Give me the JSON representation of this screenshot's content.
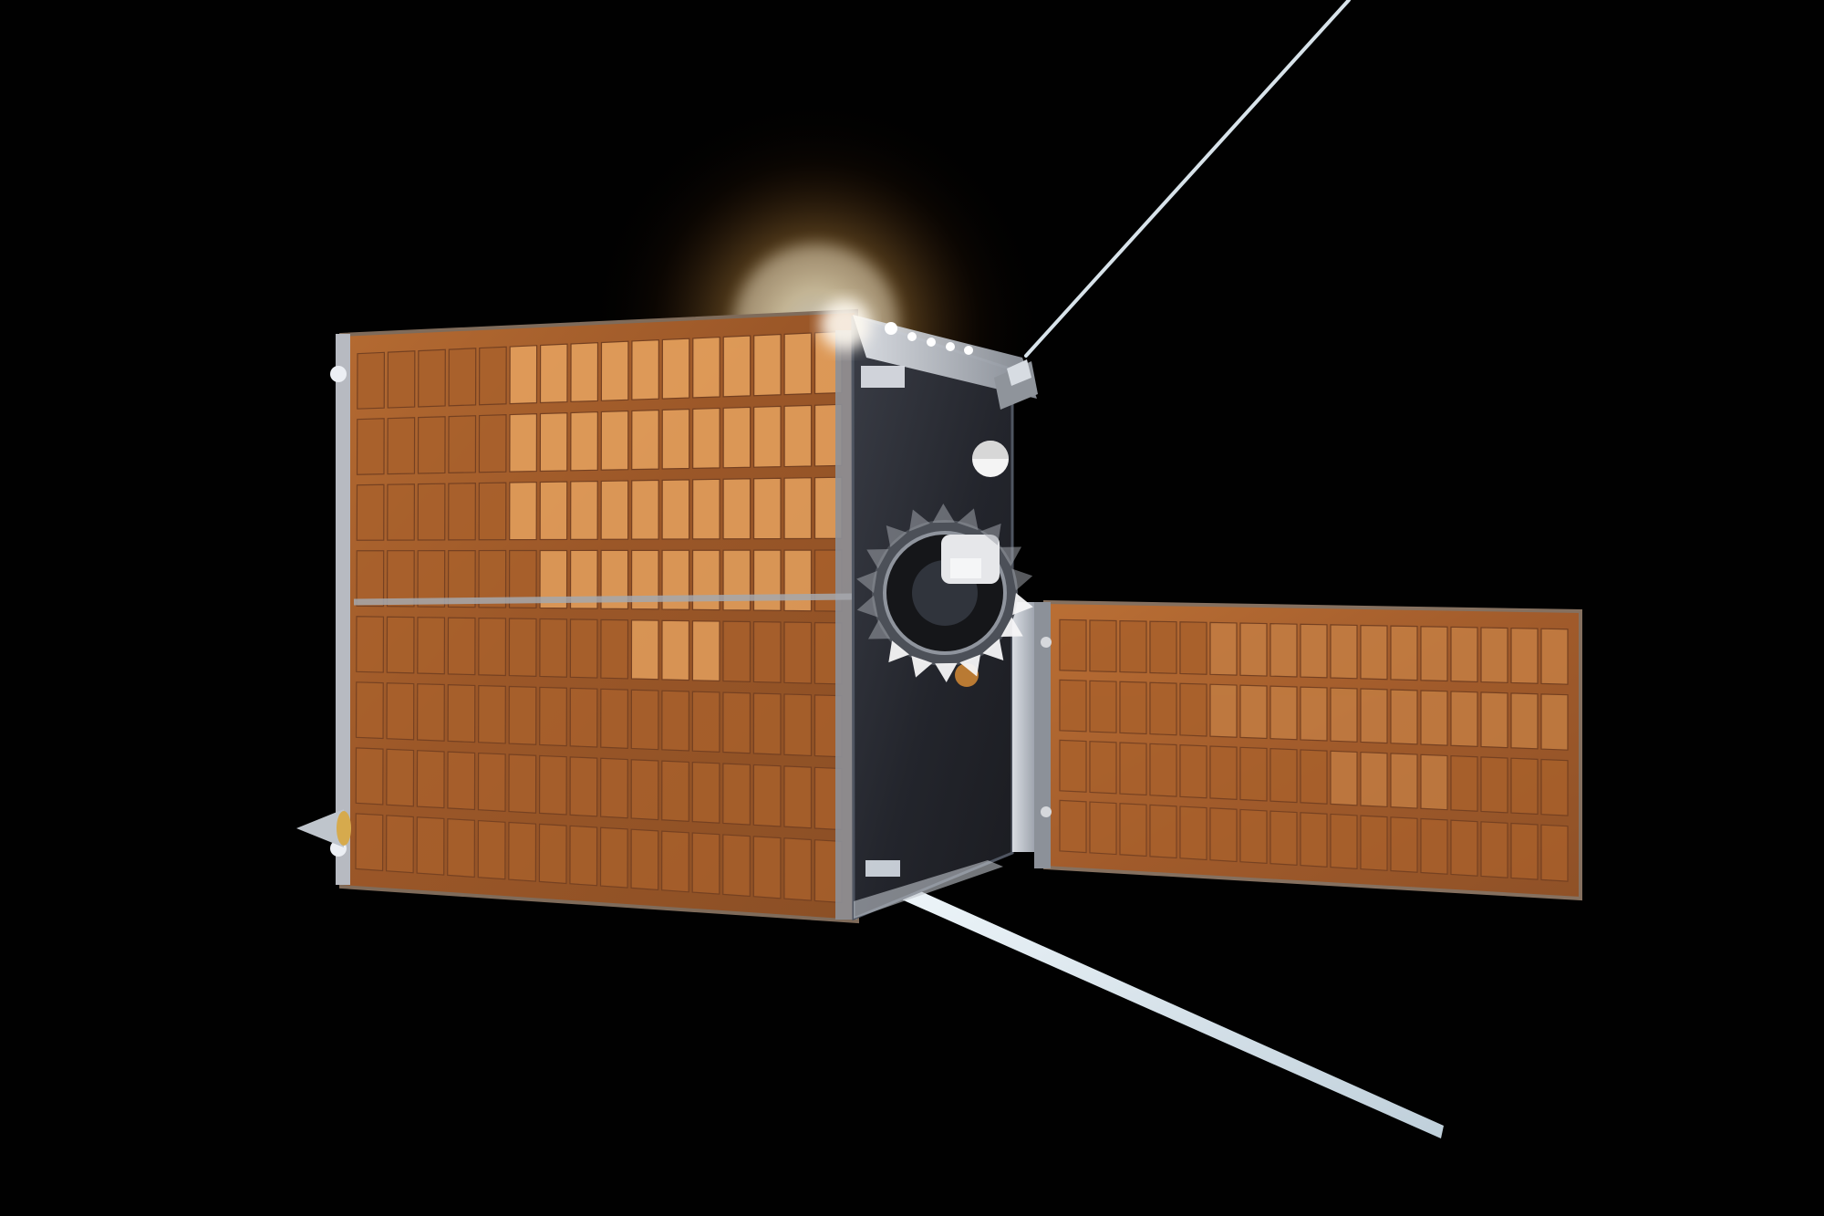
{
  "image": {
    "subject": "satellite-render",
    "colors": {
      "background": "#010101",
      "solar_cell": "#a9612c",
      "solar_cell_highlight": "#e4a05d",
      "panel_frame": "#8e7d6d",
      "bus_body": "#2a2c33",
      "bus_edge": "#5d6270",
      "antenna": "#dbe8ef",
      "sun_glow": "#ffc06a"
    },
    "main_panel": {
      "rows": 8,
      "columns": 16
    },
    "side_panel": {
      "rows": 4,
      "columns": 17
    }
  }
}
